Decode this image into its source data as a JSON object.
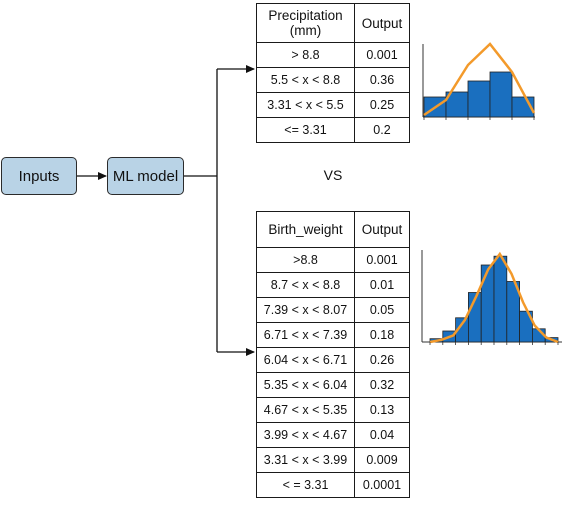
{
  "diagram": {
    "inputs_label": "Inputs",
    "model_label": "ML model",
    "vs_label": "VS"
  },
  "precip_table": {
    "header_col1": "Precipitation (mm)",
    "header_col2": "Output",
    "rows": [
      {
        "range": "> 8.8",
        "output": "0.001"
      },
      {
        "range": "5.5 < x < 8.8",
        "output": "0.36"
      },
      {
        "range": "3.31 < x < 5.5",
        "output": "0.25"
      },
      {
        "range": "<= 3.31",
        "output": "0.2"
      }
    ]
  },
  "birth_table": {
    "header_col1": "Birth_weight",
    "header_col2": "Output",
    "rows": [
      {
        "range": ">8.8",
        "output": "0.001"
      },
      {
        "range": "8.7 < x < 8.8",
        "output": "0.01"
      },
      {
        "range": "7.39 < x < 8.07",
        "output": "0.05"
      },
      {
        "range": "6.71 < x < 7.39",
        "output": "0.18"
      },
      {
        "range": "6.04 < x < 6.71",
        "output": "0.26"
      },
      {
        "range": "5.35 < x < 6.04",
        "output": "0.32"
      },
      {
        "range": "4.67 < x < 5.35",
        "output": "0.13"
      },
      {
        "range": "3.99 < x < 4.67",
        "output": "0.04"
      },
      {
        "range": "3.31 < x < 3.99",
        "output": "0.009"
      },
      {
        "range": "< = 3.31",
        "output": "0.0001"
      }
    ]
  },
  "histograms": {
    "precip_bars": [
      0.2,
      0.25,
      0.36,
      0.45,
      0.2
    ],
    "precip_curve": [
      0.02,
      0.17,
      0.52,
      0.73,
      0.45,
      0.04
    ],
    "birth_bars": [
      0.03,
      0.1,
      0.22,
      0.45,
      0.7,
      0.78,
      0.55,
      0.28,
      0.12,
      0.04
    ],
    "birth_curve": [
      0.0,
      0.02,
      0.06,
      0.2,
      0.42,
      0.66,
      0.8,
      0.62,
      0.36,
      0.15,
      0.04,
      0.0
    ],
    "bar_color": "#1a6fbf",
    "curve_color": "#f39a2b"
  }
}
